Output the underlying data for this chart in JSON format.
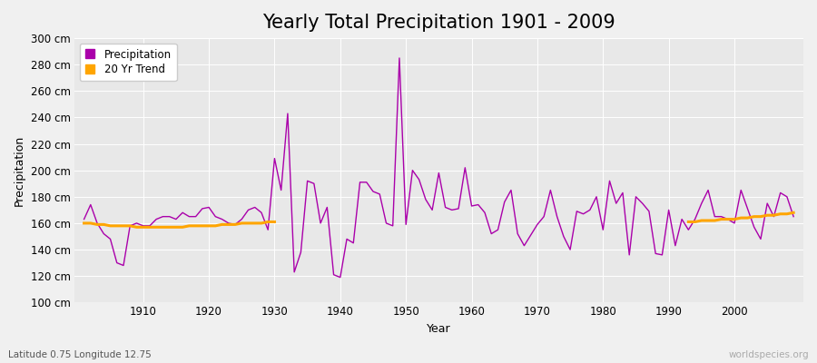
{
  "title": "Yearly Total Precipitation 1901 - 2009",
  "xlabel": "Year",
  "ylabel": "Precipitation",
  "subtitle": "Latitude 0.75 Longitude 12.75",
  "watermark": "worldspecies.org",
  "ylim": [
    100,
    300
  ],
  "yticks": [
    100,
    120,
    140,
    160,
    180,
    200,
    220,
    240,
    260,
    280,
    300
  ],
  "ytick_labels": [
    "100 cm",
    "120 cm",
    "140 cm",
    "160 cm",
    "180 cm",
    "200 cm",
    "220 cm",
    "240 cm",
    "260 cm",
    "280 cm",
    "300 cm"
  ],
  "years": [
    1901,
    1902,
    1903,
    1904,
    1905,
    1906,
    1907,
    1908,
    1909,
    1910,
    1911,
    1912,
    1913,
    1914,
    1915,
    1916,
    1917,
    1918,
    1919,
    1920,
    1921,
    1922,
    1923,
    1924,
    1925,
    1926,
    1927,
    1928,
    1929,
    1930,
    1931,
    1932,
    1933,
    1934,
    1935,
    1936,
    1937,
    1938,
    1939,
    1940,
    1941,
    1942,
    1943,
    1944,
    1945,
    1946,
    1947,
    1948,
    1949,
    1950,
    1951,
    1952,
    1953,
    1954,
    1955,
    1956,
    1957,
    1958,
    1959,
    1960,
    1961,
    1962,
    1963,
    1964,
    1965,
    1966,
    1967,
    1968,
    1969,
    1970,
    1971,
    1972,
    1973,
    1974,
    1975,
    1976,
    1977,
    1978,
    1979,
    1980,
    1981,
    1982,
    1983,
    1984,
    1985,
    1986,
    1987,
    1988,
    1989,
    1990,
    1991,
    1992,
    1993,
    1994,
    1995,
    1996,
    1997,
    1998,
    1999,
    2000,
    2001,
    2002,
    2003,
    2004,
    2005,
    2006,
    2007,
    2008,
    2009
  ],
  "precip": [
    163,
    174,
    160,
    152,
    148,
    130,
    128,
    158,
    160,
    158,
    158,
    163,
    165,
    165,
    163,
    168,
    165,
    165,
    171,
    172,
    165,
    163,
    160,
    159,
    163,
    170,
    172,
    168,
    155,
    209,
    185,
    243,
    123,
    138,
    192,
    190,
    160,
    172,
    121,
    119,
    148,
    145,
    191,
    191,
    184,
    182,
    160,
    158,
    285,
    159,
    200,
    193,
    178,
    170,
    198,
    172,
    170,
    171,
    202,
    173,
    174,
    168,
    152,
    155,
    176,
    185,
    152,
    143,
    151,
    159,
    165,
    185,
    165,
    150,
    140,
    169,
    167,
    170,
    180,
    155,
    192,
    175,
    183,
    136,
    180,
    175,
    169,
    137,
    136,
    170,
    143,
    163,
    155,
    163,
    175,
    185,
    165,
    165,
    163,
    160,
    185,
    171,
    157,
    148,
    175,
    165,
    183,
    180,
    165
  ],
  "trend_segment1_years": [
    1901,
    1902,
    1903,
    1904,
    1905,
    1906,
    1907,
    1908,
    1909,
    1910,
    1911,
    1912,
    1913,
    1914,
    1915,
    1916,
    1917,
    1918,
    1919,
    1920,
    1921,
    1922,
    1923,
    1924,
    1925,
    1926,
    1927,
    1928,
    1929,
    1930
  ],
  "trend_segment1_vals": [
    160,
    160,
    159,
    159,
    158,
    158,
    158,
    158,
    157,
    157,
    157,
    157,
    157,
    157,
    157,
    157,
    158,
    158,
    158,
    158,
    158,
    159,
    159,
    159,
    160,
    160,
    160,
    160,
    161,
    161
  ],
  "trend_segment2_years": [
    1993,
    1994,
    1995,
    1996,
    1997,
    1998,
    1999,
    2000,
    2001,
    2002,
    2003,
    2004,
    2005,
    2006,
    2007,
    2008,
    2009
  ],
  "trend_segment2_vals": [
    161,
    161,
    162,
    162,
    162,
    163,
    163,
    163,
    164,
    164,
    165,
    165,
    166,
    166,
    167,
    167,
    168
  ],
  "precip_color": "#aa00aa",
  "trend_color": "#FFA500",
  "bg_color": "#f0f0f0",
  "plot_bg_color": "#e8e8e8",
  "grid_color": "#ffffff",
  "title_fontsize": 15,
  "label_fontsize": 9,
  "tick_fontsize": 8.5
}
